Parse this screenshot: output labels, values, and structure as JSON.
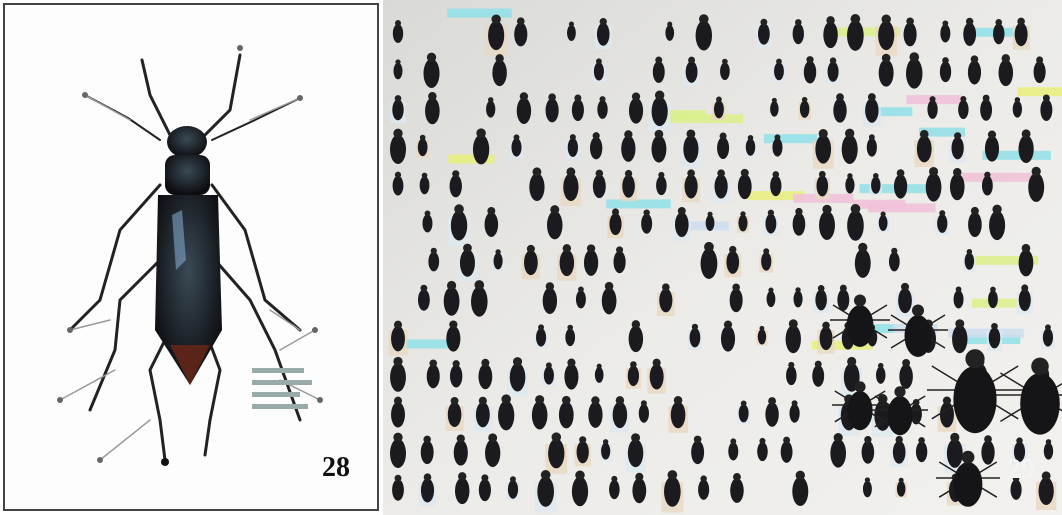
{
  "panels": [
    {
      "label": "28"
    },
    {
      "label": "29"
    }
  ]
}
